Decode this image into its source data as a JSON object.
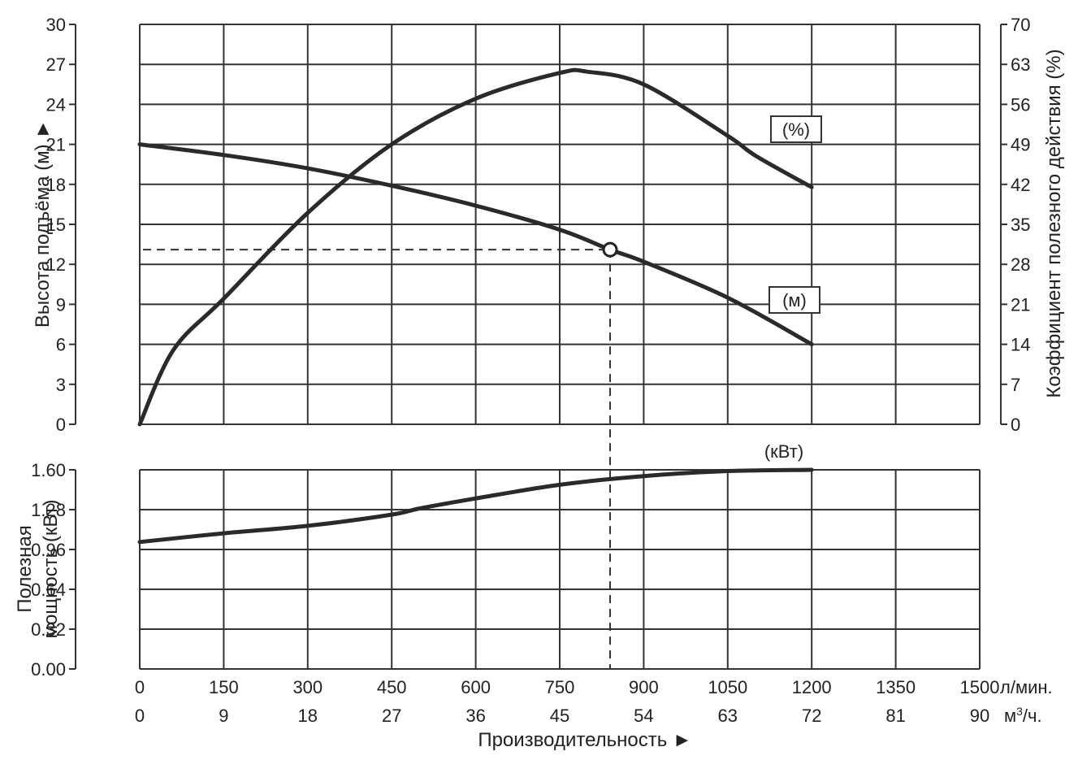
{
  "chart_data": {
    "type": "line",
    "x_lpm_ticks": [
      "0",
      "150",
      "300",
      "450",
      "600",
      "750",
      "900",
      "1050",
      "1200",
      "1350",
      "1500"
    ],
    "x_lpm_unit": "л/мин.",
    "x_m3h_ticks": [
      "0",
      "9",
      "18",
      "27",
      "36",
      "45",
      "54",
      "63",
      "72",
      "81",
      "90"
    ],
    "x_m3h_unit_base": "м",
    "x_m3h_unit_sup": "3",
    "x_m3h_unit_tail": "/ч.",
    "xlabel": "Производительность ►",
    "xlim": [
      0,
      1500
    ],
    "head_panel": {
      "ylabel": "Высота подъёма (м) ►",
      "ylim": [
        0,
        30
      ],
      "yticks": [
        "0",
        "3",
        "6",
        "9",
        "12",
        "15",
        "18",
        "21",
        "24",
        "27",
        "30"
      ],
      "y2label": "Коэффициент полезного действия (%)",
      "y2lim": [
        0,
        70
      ],
      "y2ticks": [
        "0",
        "7",
        "14",
        "21",
        "28",
        "35",
        "42",
        "49",
        "56",
        "63",
        "70"
      ]
    },
    "power_panel": {
      "ylabel_line1": "Полезная",
      "ylabel_line2": "мощность (кВт)",
      "ylim": [
        0,
        1.6
      ],
      "yticks": [
        "0.00",
        "0.32",
        "0.64",
        "0.96",
        "1.28",
        "1.60"
      ]
    },
    "series": [
      {
        "name": "(м)",
        "axis": "head",
        "x": [
          0,
          150,
          300,
          450,
          600,
          750,
          840,
          900,
          1050,
          1200
        ],
        "y": [
          21,
          20.2,
          19.2,
          17.9,
          16.4,
          14.6,
          13.1,
          12.2,
          9.5,
          6
        ]
      },
      {
        "name": "(%)",
        "axis": "efficiency",
        "x": [
          0,
          60,
          150,
          300,
          450,
          600,
          750,
          800,
          900,
          1050,
          1100,
          1200
        ],
        "y": [
          0,
          13,
          22,
          37,
          49,
          57,
          61.5,
          61.7,
          59.5,
          50.5,
          47,
          41.5
        ]
      },
      {
        "name": "(кВт)",
        "axis": "power",
        "x": [
          0,
          150,
          300,
          450,
          500,
          600,
          750,
          900,
          1050,
          1200
        ],
        "y": [
          1.02,
          1.09,
          1.15,
          1.24,
          1.29,
          1.37,
          1.48,
          1.55,
          1.59,
          1.6
        ]
      }
    ],
    "operating_point": {
      "x": 840,
      "head": 13.1
    }
  }
}
